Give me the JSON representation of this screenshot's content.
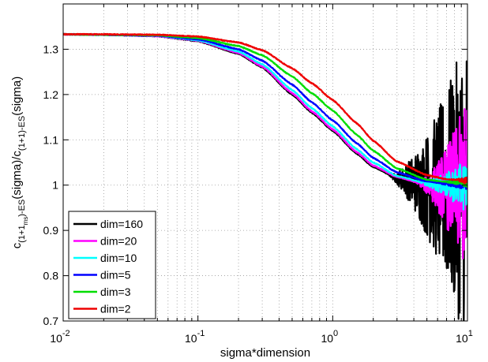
{
  "chart_data": {
    "type": "line",
    "xlabel": "sigma*dimension",
    "ylabel": {
      "c1": "c",
      "sub1": "(1+1",
      "subsub": "ms",
      "sub1b": ")-ES",
      "mid": "(sigma)/c",
      "sub2": "(1+1)-ES",
      "end": "(sigma)"
    },
    "x_scale": "log",
    "xlim": [
      0.01,
      10
    ],
    "ylim": [
      0.7,
      1.4
    ],
    "x_ticks": [
      {
        "base": "10",
        "exp": "-2"
      },
      {
        "base": "10",
        "exp": "-1"
      },
      {
        "base": "10",
        "exp": "0"
      },
      {
        "base": "10",
        "exp": "1"
      }
    ],
    "y_ticks": [
      "0.7",
      "0.8",
      "0.9",
      "1",
      "1.1",
      "1.2",
      "1.3"
    ],
    "y_tick_values": [
      0.7,
      0.8,
      0.9,
      1.0,
      1.1,
      1.2,
      1.3
    ],
    "grid": "dotted",
    "legend_position": "bottom-left",
    "x": [
      0.01,
      0.02,
      0.05,
      0.1,
      0.2,
      0.3,
      0.5,
      0.7,
      1.0,
      1.5,
      2.0,
      3.0,
      5.0,
      7.0,
      10.0
    ],
    "series": [
      {
        "name": "dim=160",
        "color": "#000000",
        "values": [
          1.333,
          1.332,
          1.329,
          1.318,
          1.29,
          1.26,
          1.2,
          1.16,
          1.12,
          1.07,
          1.04,
          1.015,
          1.0,
          0.995,
          0.993
        ],
        "noise_start": 2.5,
        "noise_amp": 0.35
      },
      {
        "name": "dim=20",
        "color": "#ff00ff",
        "values": [
          1.333,
          1.332,
          1.329,
          1.319,
          1.292,
          1.262,
          1.203,
          1.163,
          1.123,
          1.073,
          1.043,
          1.018,
          1.0,
          0.996,
          0.995
        ],
        "noise_start": 4.0,
        "noise_amp": 0.2
      },
      {
        "name": "dim=10",
        "color": "#00ffff",
        "values": [
          1.333,
          1.332,
          1.33,
          1.32,
          1.295,
          1.267,
          1.21,
          1.17,
          1.13,
          1.08,
          1.05,
          1.02,
          1.004,
          1.0,
          0.998
        ],
        "noise_start": 4.0,
        "noise_amp": 0.06
      },
      {
        "name": "dim=5",
        "color": "#0000ff",
        "values": [
          1.333,
          1.332,
          1.33,
          1.322,
          1.3,
          1.275,
          1.222,
          1.183,
          1.143,
          1.093,
          1.06,
          1.028,
          1.008,
          1.004,
          1.003
        ],
        "noise_start": 5.0,
        "noise_amp": 0.015
      },
      {
        "name": "dim=3",
        "color": "#00dd00",
        "values": [
          1.333,
          1.332,
          1.331,
          1.325,
          1.307,
          1.287,
          1.24,
          1.203,
          1.165,
          1.112,
          1.076,
          1.037,
          1.012,
          1.007,
          1.005
        ],
        "noise_start": 6.0,
        "noise_amp": 0.01
      },
      {
        "name": "dim=2",
        "color": "#ee0000",
        "values": [
          1.333,
          1.333,
          1.332,
          1.328,
          1.315,
          1.298,
          1.258,
          1.225,
          1.188,
          1.137,
          1.098,
          1.052,
          1.022,
          1.013,
          1.01
        ],
        "noise_start": 7.0,
        "noise_amp": 0.008
      }
    ]
  }
}
